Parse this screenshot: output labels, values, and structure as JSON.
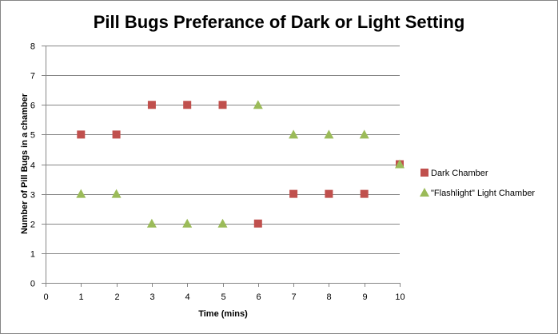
{
  "chart_data": {
    "type": "scatter",
    "title": "Pill Bugs Preferance of Dark or Light Setting",
    "xlabel": "Time (mins)",
    "ylabel": "Number of Pill Bugs in a chamber",
    "xlim": [
      0,
      10
    ],
    "ylim": [
      0,
      8
    ],
    "xticks": [
      0,
      1,
      2,
      3,
      4,
      5,
      6,
      7,
      8,
      9,
      10
    ],
    "yticks": [
      0,
      1,
      2,
      3,
      4,
      5,
      6,
      7,
      8
    ],
    "grid": "horizontal",
    "legend_position": "right",
    "series": [
      {
        "name": "Dark Chamber",
        "marker": "square",
        "color": "#C0504D",
        "x": [
          1,
          2,
          3,
          4,
          5,
          6,
          7,
          8,
          9,
          10
        ],
        "y": [
          5,
          5,
          6,
          6,
          6,
          2,
          3,
          3,
          3,
          4
        ]
      },
      {
        "name": "\"Flashlight\" Light Chamber",
        "marker": "triangle",
        "color": "#9BBB59",
        "x": [
          1,
          2,
          3,
          4,
          5,
          6,
          7,
          8,
          9,
          10
        ],
        "y": [
          3,
          3,
          2,
          2,
          2,
          6,
          5,
          5,
          5,
          4
        ]
      }
    ]
  },
  "colors": {
    "gridline": "#868686",
    "axis": "#868686",
    "frame": "#868686"
  }
}
